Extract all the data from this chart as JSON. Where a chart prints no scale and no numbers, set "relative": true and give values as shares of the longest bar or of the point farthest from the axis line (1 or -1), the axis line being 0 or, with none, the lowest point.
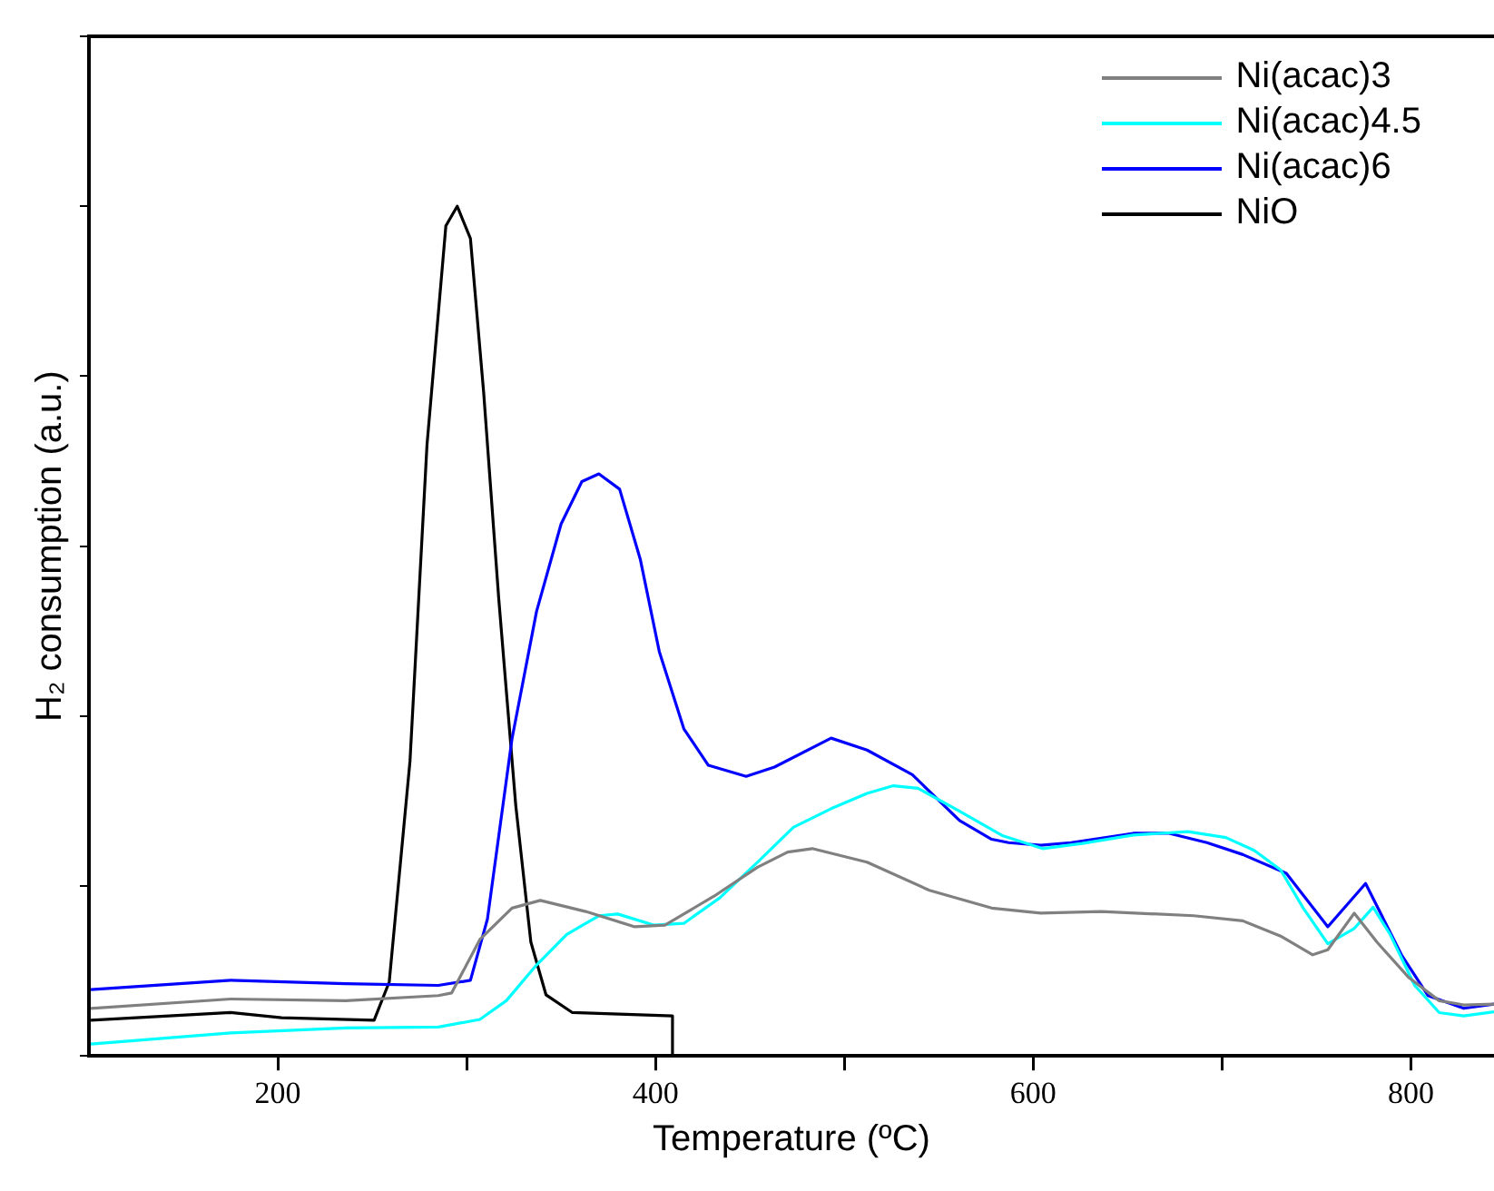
{
  "chart_data": {
    "type": "line",
    "xlabel": "Temperature (ºC)",
    "ylabel": "H₂ consumption (a.u.)",
    "relative": true,
    "xlim": [
      100,
      844
    ],
    "xticks": [
      200,
      {
        "value": 300,
        "label": null
      },
      400,
      {
        "value": 500,
        "label": null
      },
      600,
      {
        "value": 700,
        "label": null
      },
      800
    ],
    "grid": false,
    "legend": "top right",
    "marker": "none",
    "line_style": "solid",
    "series": [
      {
        "name": "Ni(acac)3",
        "color": "#808080",
        "x": [
          101,
          175,
          236,
          285,
          292,
          307,
          324,
          339,
          363,
          389,
          405,
          431,
          454,
          470,
          483,
          512,
          545,
          578,
          604,
          636,
          685,
          711,
          731,
          748,
          756,
          770,
          782,
          799,
          815,
          828,
          844
        ],
        "values": [
          0.056,
          0.067,
          0.065,
          0.071,
          0.074,
          0.137,
          0.174,
          0.183,
          0.17,
          0.152,
          0.154,
          0.188,
          0.222,
          0.24,
          0.244,
          0.228,
          0.195,
          0.174,
          0.168,
          0.17,
          0.165,
          0.159,
          0.141,
          0.119,
          0.125,
          0.168,
          0.134,
          0.092,
          0.065,
          0.06,
          0.061
        ]
      },
      {
        "name": "Ni(acac)4.5",
        "color": "#00ffff",
        "x": [
          101,
          175,
          236,
          285,
          307,
          321,
          337,
          353,
          370,
          380,
          399,
          415,
          434,
          454,
          473,
          493,
          512,
          526,
          539,
          561,
          584,
          605,
          626,
          653,
          682,
          702,
          717,
          731,
          743,
          756,
          770,
          780,
          789,
          802,
          815,
          828,
          844
        ],
        "values": [
          0.014,
          0.027,
          0.033,
          0.034,
          0.043,
          0.065,
          0.107,
          0.143,
          0.165,
          0.167,
          0.154,
          0.156,
          0.186,
          0.228,
          0.269,
          0.291,
          0.309,
          0.318,
          0.315,
          0.288,
          0.259,
          0.244,
          0.25,
          0.26,
          0.264,
          0.257,
          0.242,
          0.219,
          0.174,
          0.132,
          0.15,
          0.175,
          0.143,
          0.083,
          0.051,
          0.047,
          0.052
        ]
      },
      {
        "name": "Ni(acac)6",
        "color": "#0000ff",
        "x": [
          101,
          175,
          236,
          285,
          302,
          311,
          324,
          337,
          350,
          361,
          370,
          381,
          392,
          402,
          415,
          428,
          448,
          463,
          493,
          512,
          536,
          561,
          578,
          587,
          604,
          620,
          653,
          672,
          692,
          711,
          734,
          756,
          776,
          795,
          809,
          828,
          844
        ],
        "values": [
          0.078,
          0.089,
          0.085,
          0.083,
          0.089,
          0.161,
          0.373,
          0.523,
          0.626,
          0.676,
          0.685,
          0.667,
          0.584,
          0.476,
          0.385,
          0.342,
          0.329,
          0.34,
          0.374,
          0.36,
          0.331,
          0.277,
          0.255,
          0.251,
          0.248,
          0.251,
          0.262,
          0.262,
          0.251,
          0.237,
          0.215,
          0.152,
          0.203,
          0.119,
          0.071,
          0.056,
          0.061
        ]
      },
      {
        "name": "NiO",
        "color": "#000000",
        "x": [
          101,
          175,
          202,
          251,
          259,
          270,
          279,
          289,
          295,
          302,
          309,
          317,
          326,
          334,
          342,
          356,
          409,
          409
        ],
        "values": [
          0.042,
          0.051,
          0.045,
          0.042,
          0.087,
          0.347,
          0.719,
          0.977,
          1.0,
          0.962,
          0.781,
          0.538,
          0.295,
          0.134,
          0.072,
          0.051,
          0.047,
          0
        ]
      }
    ]
  }
}
